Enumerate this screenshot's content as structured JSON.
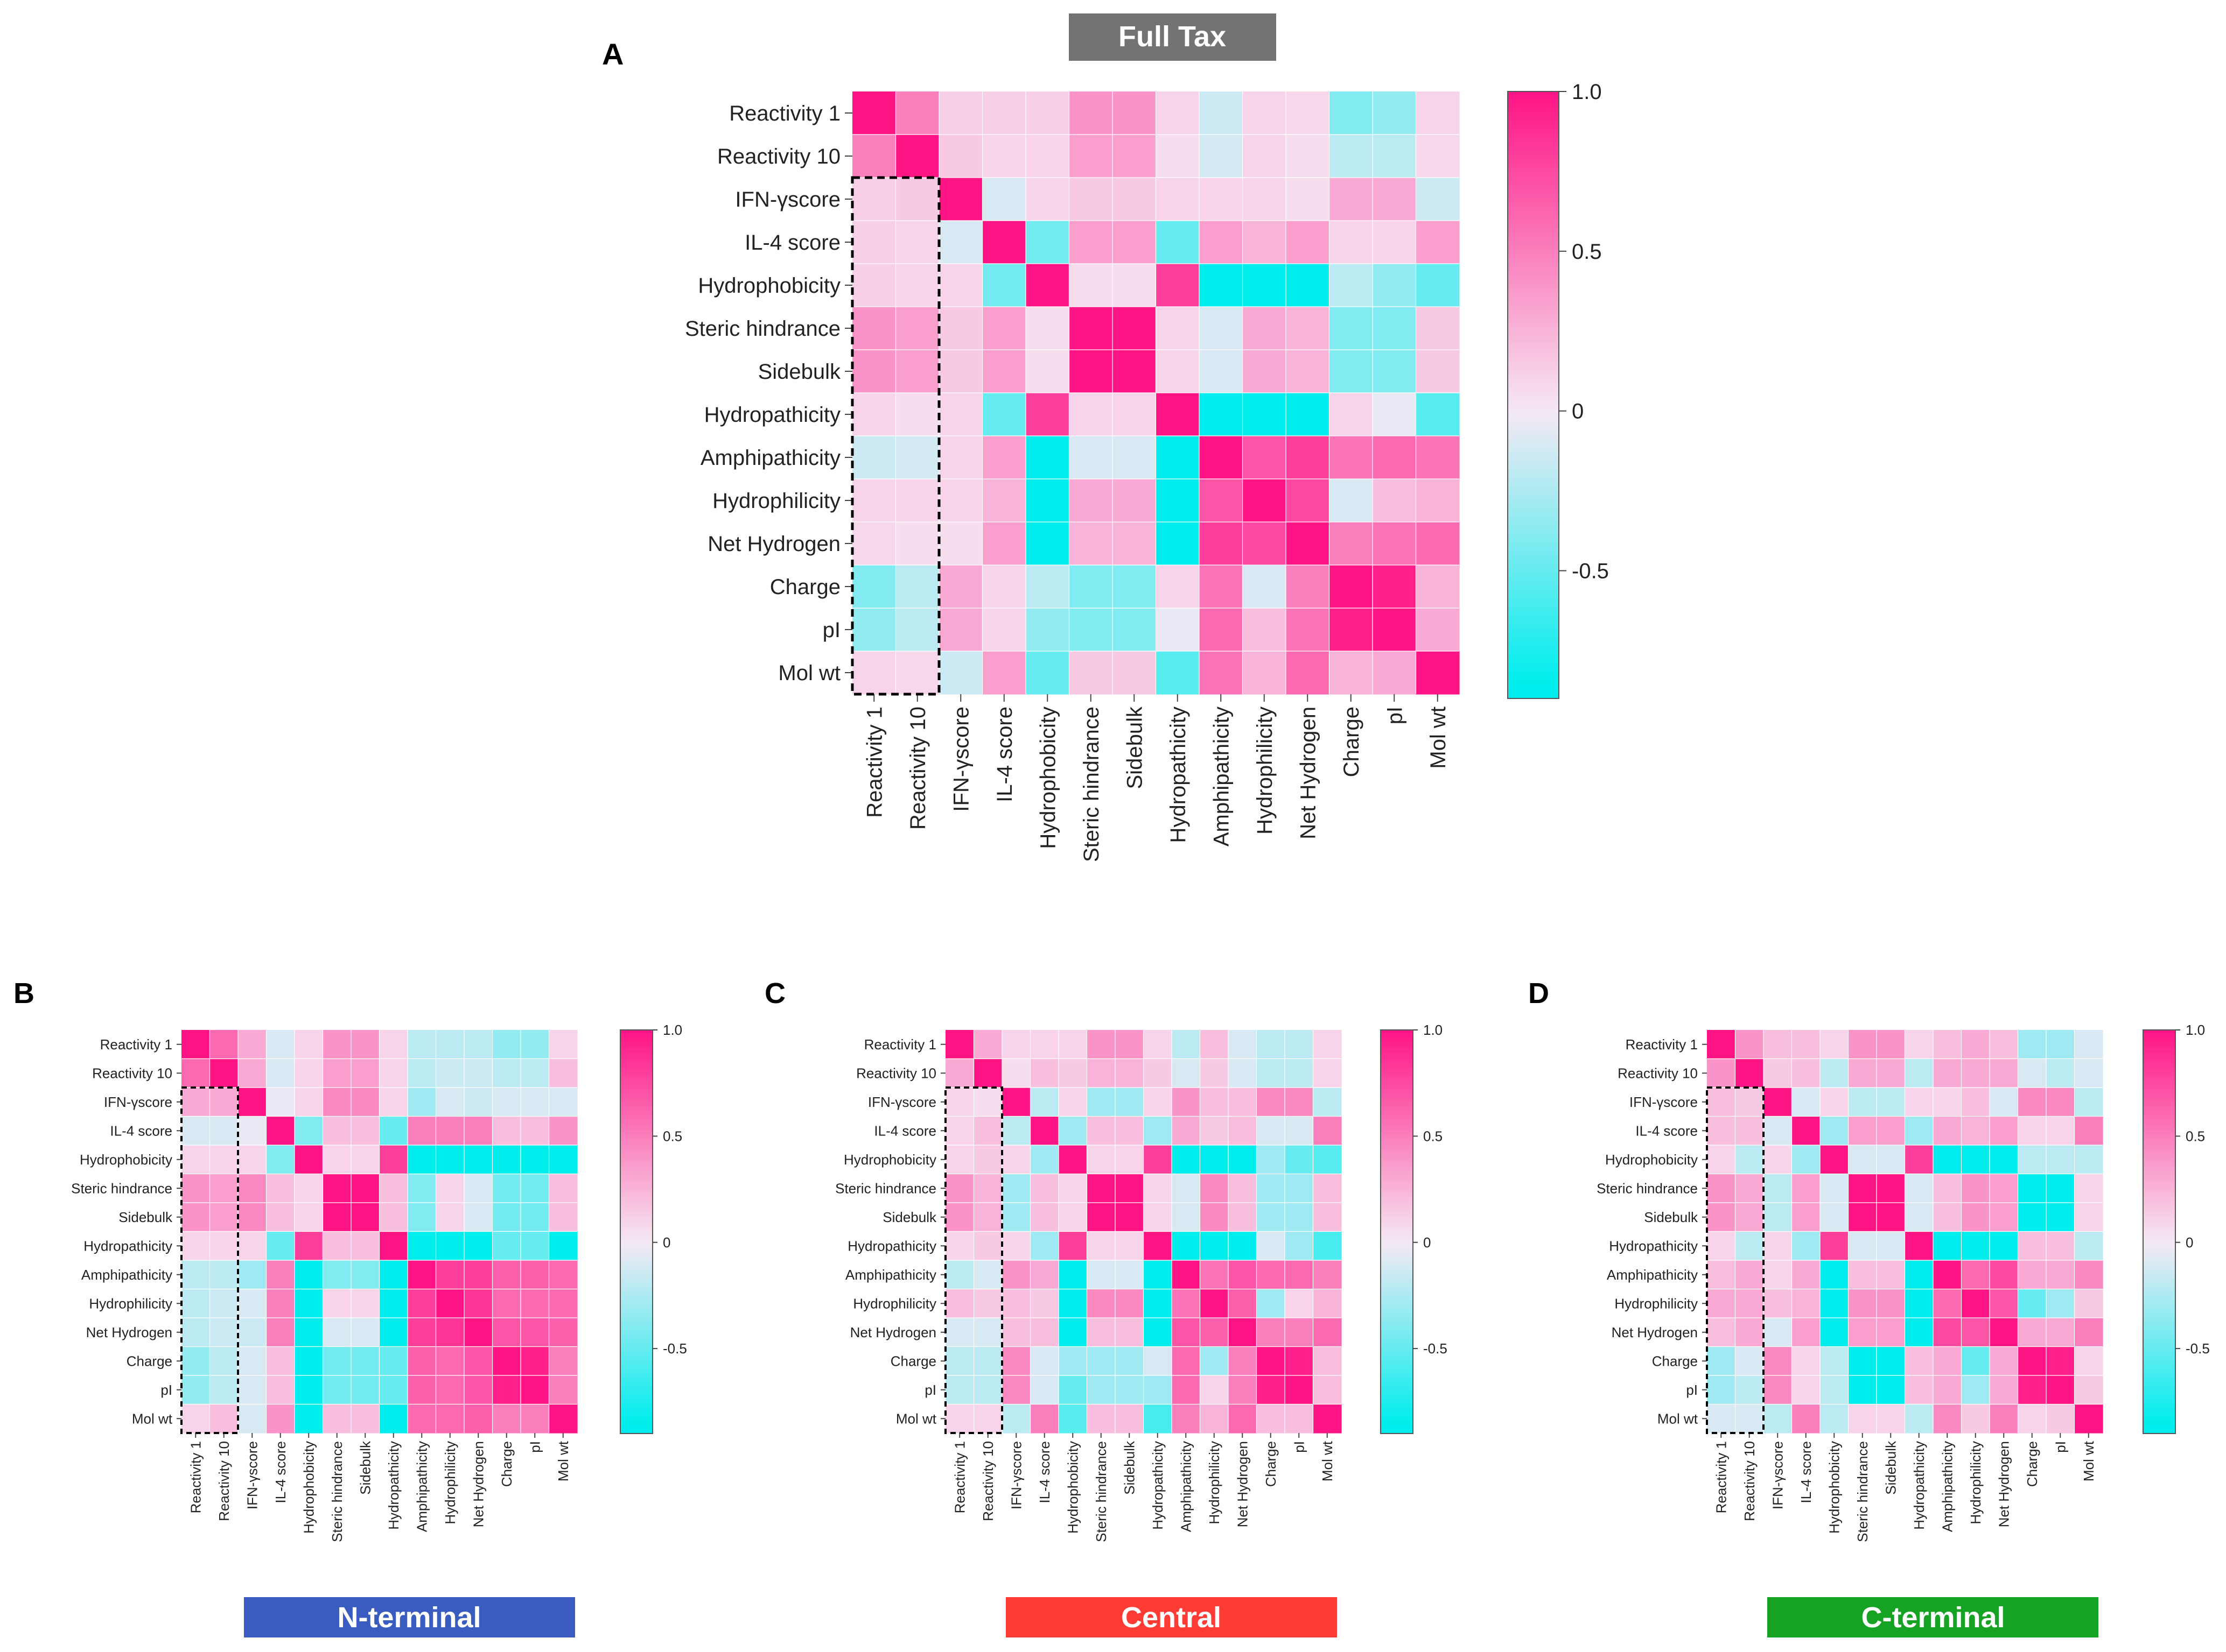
{
  "labels": {
    "full_tax": "Full Tax",
    "n_terminal": "N-terminal",
    "central": "Central",
    "c_terminal": "C-terminal"
  },
  "colors": {
    "full_tax_banner": "#737373",
    "n_terminal_banner": "#3a5bbf",
    "central_banner": "#ff3b36",
    "c_terminal_banner": "#16a324",
    "cmap_low": "#00eded",
    "cmap_mid": "#f6e9f4",
    "cmap_high": "#ff1485"
  },
  "chart_data": [
    {
      "panel": "A",
      "type": "heatmap",
      "title": "Full Tax",
      "rows": [
        "Reactivity 1",
        "Reactivity 10",
        "IFN-γscore",
        "IL-4 score",
        "Hydrophobicity",
        "Steric hindrance",
        "Sidebulk",
        "Hydropathicity",
        "Amphipathicity",
        "Hydrophilicity",
        "Net Hydrogen",
        "Charge",
        "pI",
        "Mol wt"
      ],
      "cols": [
        "Reactivity 1",
        "Reactivity 10",
        "IFN-γscore",
        "IL-4 score",
        "Hydrophobicity",
        "Steric hindrance",
        "Sidebulk",
        "Hydropathicity",
        "Amphipathicity",
        "Hydrophilicity",
        "Net Hydrogen",
        "Charge",
        "pI",
        "Mol wt"
      ],
      "values": [
        [
          1.0,
          0.5,
          0.12,
          0.12,
          0.12,
          0.4,
          0.4,
          0.1,
          -0.15,
          0.1,
          0.08,
          -0.4,
          -0.35,
          0.1
        ],
        [
          0.5,
          1.0,
          0.15,
          0.1,
          0.1,
          0.35,
          0.35,
          0.05,
          -0.12,
          0.1,
          0.05,
          -0.2,
          -0.2,
          0.08
        ],
        [
          0.12,
          0.15,
          1.0,
          -0.1,
          0.1,
          0.15,
          0.15,
          0.1,
          0.1,
          0.1,
          0.05,
          0.3,
          0.3,
          -0.15
        ],
        [
          0.12,
          0.1,
          -0.1,
          1.0,
          -0.45,
          0.35,
          0.35,
          -0.5,
          0.35,
          0.25,
          0.35,
          0.1,
          0.1,
          0.35
        ],
        [
          0.12,
          0.1,
          0.1,
          -0.45,
          1.0,
          0.05,
          0.05,
          0.8,
          -0.95,
          -0.95,
          -0.95,
          -0.2,
          -0.35,
          -0.5
        ],
        [
          0.4,
          0.35,
          0.15,
          0.35,
          0.05,
          1.0,
          1.0,
          0.1,
          -0.1,
          0.3,
          0.25,
          -0.4,
          -0.4,
          0.15
        ],
        [
          0.4,
          0.35,
          0.15,
          0.35,
          0.05,
          1.0,
          1.0,
          0.1,
          -0.1,
          0.3,
          0.25,
          -0.4,
          -0.4,
          0.15
        ],
        [
          0.1,
          0.05,
          0.1,
          -0.5,
          0.8,
          0.1,
          0.1,
          1.0,
          -0.95,
          -0.95,
          -0.95,
          0.1,
          -0.05,
          -0.55
        ],
        [
          -0.15,
          -0.12,
          0.1,
          0.35,
          -0.95,
          -0.1,
          -0.1,
          -0.95,
          1.0,
          0.7,
          0.8,
          0.55,
          0.6,
          0.55
        ],
        [
          0.1,
          0.1,
          0.1,
          0.25,
          -0.95,
          0.3,
          0.3,
          -0.95,
          0.7,
          1.0,
          0.75,
          -0.1,
          0.2,
          0.25
        ],
        [
          0.08,
          0.05,
          0.05,
          0.35,
          -0.95,
          0.25,
          0.25,
          -0.95,
          0.8,
          0.75,
          1.0,
          0.5,
          0.55,
          0.6
        ],
        [
          -0.4,
          -0.2,
          0.3,
          0.1,
          -0.2,
          -0.4,
          -0.4,
          0.1,
          0.55,
          -0.1,
          0.5,
          1.0,
          0.95,
          0.25
        ],
        [
          -0.35,
          -0.2,
          0.3,
          0.1,
          -0.35,
          -0.4,
          -0.4,
          -0.05,
          0.6,
          0.2,
          0.55,
          0.95,
          1.0,
          0.3
        ],
        [
          0.1,
          0.08,
          -0.15,
          0.35,
          -0.5,
          0.15,
          0.15,
          -0.55,
          0.55,
          0.25,
          0.6,
          0.25,
          0.3,
          1.0
        ]
      ],
      "colorbar": {
        "range": [
          -0.9,
          1.0
        ],
        "ticks": [
          "1.0",
          "0.5",
          "0",
          "-0.5"
        ],
        "tick_values": [
          1.0,
          0.5,
          0,
          -0.5
        ]
      }
    },
    {
      "panel": "B",
      "type": "heatmap",
      "title": "N-terminal",
      "rows": [
        "Reactivity 1",
        "Reactivity 10",
        "IFN-γscore",
        "IL-4 score",
        "Hydrophobicity",
        "Steric hindrance",
        "Sidebulk",
        "Hydropathicity",
        "Amphipathicity",
        "Hydrophilicity",
        "Net Hydrogen",
        "Charge",
        "pI",
        "Mol wt"
      ],
      "cols": [
        "Reactivity 1",
        "Reactivity 10",
        "IFN-γscore",
        "IL-4 score",
        "Hydrophobicity",
        "Steric hindrance",
        "Sidebulk",
        "Hydropathicity",
        "Amphipathicity",
        "Hydrophilicity",
        "Net Hydrogen",
        "Charge",
        "pI",
        "Mol wt"
      ],
      "values": [
        [
          1.0,
          0.6,
          0.3,
          -0.1,
          0.1,
          0.4,
          0.4,
          0.1,
          -0.2,
          -0.2,
          -0.2,
          -0.35,
          -0.35,
          0.1
        ],
        [
          0.6,
          1.0,
          0.3,
          -0.1,
          0.1,
          0.35,
          0.35,
          0.1,
          -0.2,
          -0.15,
          -0.15,
          -0.2,
          -0.2,
          0.2
        ],
        [
          0.3,
          0.3,
          1.0,
          -0.05,
          0.1,
          0.45,
          0.45,
          0.1,
          -0.3,
          -0.1,
          -0.15,
          -0.1,
          -0.1,
          -0.1
        ],
        [
          -0.1,
          -0.1,
          -0.05,
          1.0,
          -0.4,
          0.2,
          0.2,
          -0.5,
          0.5,
          0.5,
          0.5,
          0.2,
          0.2,
          0.4
        ],
        [
          0.1,
          0.1,
          0.1,
          -0.4,
          1.0,
          0.1,
          0.1,
          0.8,
          -0.95,
          -0.95,
          -0.95,
          -0.95,
          -0.95,
          -0.9
        ],
        [
          0.4,
          0.35,
          0.45,
          0.2,
          0.1,
          1.0,
          1.0,
          0.2,
          -0.4,
          0.1,
          -0.1,
          -0.45,
          -0.45,
          0.2
        ],
        [
          0.4,
          0.35,
          0.45,
          0.2,
          0.1,
          1.0,
          1.0,
          0.2,
          -0.4,
          0.1,
          -0.1,
          -0.45,
          -0.45,
          0.2
        ],
        [
          0.1,
          0.1,
          0.1,
          -0.5,
          0.8,
          0.2,
          0.2,
          1.0,
          -0.95,
          -0.95,
          -0.95,
          -0.5,
          -0.5,
          -0.9
        ],
        [
          -0.2,
          -0.2,
          -0.3,
          0.5,
          -0.95,
          -0.4,
          -0.4,
          -0.95,
          1.0,
          0.8,
          0.8,
          0.65,
          0.65,
          0.6
        ],
        [
          -0.2,
          -0.15,
          -0.1,
          0.5,
          -0.95,
          0.1,
          0.1,
          -0.95,
          0.8,
          1.0,
          0.85,
          0.6,
          0.6,
          0.6
        ],
        [
          -0.2,
          -0.15,
          -0.15,
          0.5,
          -0.95,
          -0.1,
          -0.1,
          -0.95,
          0.8,
          0.85,
          1.0,
          0.7,
          0.7,
          0.65
        ],
        [
          -0.35,
          -0.2,
          -0.1,
          0.2,
          -0.95,
          -0.45,
          -0.45,
          -0.5,
          0.65,
          0.6,
          0.7,
          1.0,
          0.95,
          0.5
        ],
        [
          -0.35,
          -0.2,
          -0.1,
          0.2,
          -0.95,
          -0.45,
          -0.45,
          -0.5,
          0.65,
          0.6,
          0.7,
          0.95,
          1.0,
          0.5
        ],
        [
          0.1,
          0.2,
          -0.1,
          0.4,
          -0.9,
          0.2,
          0.2,
          -0.9,
          0.6,
          0.6,
          0.65,
          0.5,
          0.5,
          1.0
        ]
      ],
      "colorbar": {
        "range": [
          -0.9,
          1.0
        ],
        "ticks": [
          "1.0",
          "0.5",
          "0",
          "-0.5"
        ],
        "tick_values": [
          1.0,
          0.5,
          0,
          -0.5
        ]
      }
    },
    {
      "panel": "C",
      "type": "heatmap",
      "title": "Central",
      "rows": [
        "Reactivity 1",
        "Reactivity 10",
        "IFN-γscore",
        "IL-4 score",
        "Hydrophobicity",
        "Steric hindrance",
        "Sidebulk",
        "Hydropathicity",
        "Amphipathicity",
        "Hydrophilicity",
        "Net Hydrogen",
        "Charge",
        "pI",
        "Mol wt"
      ],
      "cols": [
        "Reactivity 1",
        "Reactivity 10",
        "IFN-γscore",
        "IL-4 score",
        "Hydrophobicity",
        "Steric hindrance",
        "Sidebulk",
        "Hydropathicity",
        "Amphipathicity",
        "Hydrophilicity",
        "Net Hydrogen",
        "Charge",
        "pI",
        "Mol wt"
      ],
      "values": [
        [
          1.0,
          0.3,
          0.1,
          0.1,
          0.1,
          0.4,
          0.4,
          0.1,
          -0.2,
          0.2,
          -0.1,
          -0.2,
          -0.2,
          0.1
        ],
        [
          0.3,
          1.0,
          0.05,
          0.2,
          0.15,
          0.25,
          0.25,
          0.15,
          -0.1,
          0.15,
          -0.1,
          -0.2,
          -0.2,
          0.1
        ],
        [
          0.1,
          0.05,
          1.0,
          -0.2,
          0.1,
          -0.3,
          -0.3,
          0.1,
          0.4,
          0.2,
          0.2,
          0.45,
          0.45,
          -0.2
        ],
        [
          0.1,
          0.2,
          -0.2,
          1.0,
          -0.3,
          0.2,
          0.2,
          -0.3,
          0.3,
          0.15,
          0.2,
          -0.1,
          -0.1,
          0.5
        ],
        [
          0.1,
          0.15,
          0.1,
          -0.3,
          1.0,
          0.1,
          0.1,
          0.8,
          -0.95,
          -0.95,
          -0.95,
          -0.3,
          -0.5,
          -0.55
        ],
        [
          0.4,
          0.25,
          -0.3,
          0.2,
          0.1,
          1.0,
          1.0,
          0.1,
          -0.1,
          0.45,
          0.2,
          -0.3,
          -0.3,
          0.2
        ],
        [
          0.4,
          0.25,
          -0.3,
          0.2,
          0.1,
          1.0,
          1.0,
          0.1,
          -0.1,
          0.45,
          0.2,
          -0.3,
          -0.3,
          0.2
        ],
        [
          0.1,
          0.15,
          0.1,
          -0.3,
          0.8,
          0.1,
          0.1,
          1.0,
          -0.95,
          -0.95,
          -0.95,
          -0.1,
          -0.3,
          -0.6
        ],
        [
          -0.2,
          -0.1,
          0.4,
          0.3,
          -0.95,
          -0.1,
          -0.1,
          -0.95,
          1.0,
          0.55,
          0.7,
          0.6,
          0.6,
          0.5
        ],
        [
          0.2,
          0.15,
          0.2,
          0.15,
          -0.95,
          0.45,
          0.45,
          -0.95,
          0.55,
          1.0,
          0.65,
          -0.3,
          0.1,
          0.25
        ],
        [
          -0.1,
          -0.1,
          0.2,
          0.2,
          -0.95,
          0.2,
          0.2,
          -0.95,
          0.7,
          0.65,
          1.0,
          0.5,
          0.5,
          0.6
        ],
        [
          -0.2,
          -0.2,
          0.45,
          -0.1,
          -0.3,
          -0.3,
          -0.3,
          -0.1,
          0.6,
          -0.3,
          0.5,
          1.0,
          0.95,
          0.2
        ],
        [
          -0.2,
          -0.2,
          0.45,
          -0.1,
          -0.5,
          -0.3,
          -0.3,
          -0.3,
          0.6,
          0.1,
          0.5,
          0.95,
          1.0,
          0.2
        ],
        [
          0.1,
          0.1,
          -0.2,
          0.5,
          -0.55,
          0.2,
          0.2,
          -0.6,
          0.5,
          0.25,
          0.6,
          0.2,
          0.2,
          1.0
        ]
      ],
      "colorbar": {
        "range": [
          -0.9,
          1.0
        ],
        "ticks": [
          "1.0",
          "0.5",
          "0",
          "-0.5"
        ],
        "tick_values": [
          1.0,
          0.5,
          0,
          -0.5
        ]
      }
    },
    {
      "panel": "D",
      "type": "heatmap",
      "title": "C-terminal",
      "rows": [
        "Reactivity 1",
        "Reactivity 10",
        "IFN-γscore",
        "IL-4 score",
        "Hydrophobicity",
        "Steric hindrance",
        "Sidebulk",
        "Hydropathicity",
        "Amphipathicity",
        "Hydrophilicity",
        "Net Hydrogen",
        "Charge",
        "pI",
        "Mol wt"
      ],
      "cols": [
        "Reactivity 1",
        "Reactivity 10",
        "IFN-γscore",
        "IL-4 score",
        "Hydrophobicity",
        "Steric hindrance",
        "Sidebulk",
        "Hydropathicity",
        "Amphipathicity",
        "Hydrophilicity",
        "Net Hydrogen",
        "Charge",
        "pI",
        "Mol wt"
      ],
      "values": [
        [
          1.0,
          0.4,
          0.2,
          0.2,
          0.1,
          0.4,
          0.4,
          0.1,
          0.2,
          0.3,
          0.2,
          -0.3,
          -0.3,
          -0.1
        ],
        [
          0.4,
          1.0,
          0.15,
          0.2,
          -0.2,
          0.3,
          0.3,
          -0.2,
          0.3,
          0.3,
          0.3,
          -0.1,
          -0.2,
          -0.1
        ],
        [
          0.2,
          0.15,
          1.0,
          -0.1,
          0.1,
          -0.2,
          -0.2,
          0.1,
          0.1,
          0.2,
          -0.1,
          0.45,
          0.45,
          -0.2
        ],
        [
          0.2,
          0.2,
          -0.1,
          1.0,
          -0.3,
          0.35,
          0.35,
          -0.3,
          0.3,
          0.25,
          0.35,
          0.1,
          0.1,
          0.5
        ],
        [
          0.1,
          -0.2,
          0.1,
          -0.3,
          1.0,
          -0.1,
          -0.1,
          0.8,
          -0.95,
          -0.95,
          -0.95,
          -0.2,
          -0.2,
          -0.2
        ],
        [
          0.4,
          0.3,
          -0.2,
          0.35,
          -0.1,
          1.0,
          1.0,
          -0.1,
          0.2,
          0.4,
          0.35,
          -0.9,
          -0.9,
          0.1
        ],
        [
          0.4,
          0.3,
          -0.2,
          0.35,
          -0.1,
          1.0,
          1.0,
          -0.1,
          0.2,
          0.4,
          0.35,
          -0.9,
          -0.9,
          0.1
        ],
        [
          0.1,
          -0.2,
          0.1,
          -0.3,
          0.8,
          -0.1,
          -0.1,
          1.0,
          -0.95,
          -0.95,
          -0.95,
          0.2,
          0.2,
          -0.2
        ],
        [
          0.2,
          0.3,
          0.1,
          0.3,
          -0.95,
          0.2,
          0.2,
          -0.95,
          1.0,
          0.6,
          0.75,
          0.3,
          0.3,
          0.45
        ],
        [
          0.3,
          0.3,
          0.2,
          0.25,
          -0.95,
          0.4,
          0.4,
          -0.95,
          0.6,
          1.0,
          0.7,
          -0.5,
          -0.3,
          0.15
        ],
        [
          0.2,
          0.3,
          -0.1,
          0.35,
          -0.95,
          0.35,
          0.35,
          -0.95,
          0.75,
          0.7,
          1.0,
          0.3,
          0.3,
          0.5
        ],
        [
          -0.3,
          -0.1,
          0.45,
          0.1,
          -0.2,
          -0.9,
          -0.9,
          0.2,
          0.3,
          -0.5,
          0.3,
          1.0,
          0.95,
          0.1
        ],
        [
          -0.3,
          -0.2,
          0.45,
          0.1,
          -0.2,
          -0.9,
          -0.9,
          0.2,
          0.3,
          -0.3,
          0.3,
          0.95,
          1.0,
          0.15
        ],
        [
          -0.1,
          -0.1,
          -0.2,
          0.5,
          -0.2,
          0.1,
          0.1,
          -0.2,
          0.45,
          0.15,
          0.5,
          0.1,
          0.15,
          1.0
        ]
      ],
      "colorbar": {
        "range": [
          -0.9,
          1.0
        ],
        "ticks": [
          "1.0",
          "0.5",
          "0",
          "-0.5"
        ],
        "tick_values": [
          1.0,
          0.5,
          0,
          -0.5
        ]
      }
    }
  ]
}
